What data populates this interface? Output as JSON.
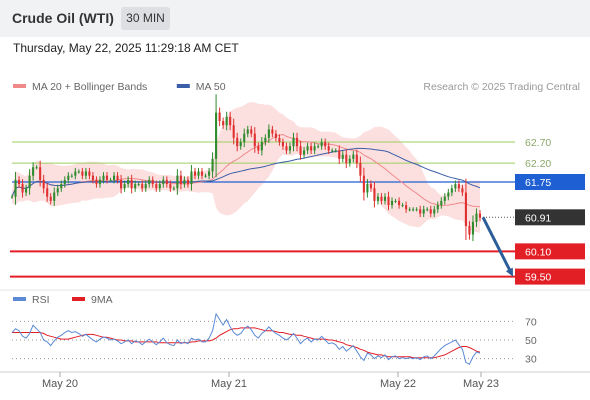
{
  "header": {
    "title": "Crude Oil (WTI)",
    "timeframe": "30 MIN"
  },
  "datetime": "Thursday, May 22, 2025 11:29:18 AM CET",
  "colors": {
    "candle_up": "#2e8b2e",
    "candle_down": "#e03030",
    "bollinger_fill": "#fbd6d6",
    "ma20": "#f08a8a",
    "ma50": "#3a5ea8",
    "rsi": "#5b8ad6",
    "rsi_ma": "#e31f26",
    "resistance": "#9ccf5e",
    "pivot": "#1f5fd4",
    "support": "#e31f26",
    "arrow": "#2c5e9a"
  },
  "chart_data": {
    "type": "candlestick",
    "legend": {
      "position": "top-left",
      "items": [
        {
          "label": "MA 20 + Bollinger Bands",
          "color": "#f08a8a"
        },
        {
          "label": "MA 50",
          "color": "#3a5ea8"
        }
      ]
    },
    "watermark": "Research © 2025 Trading Central",
    "x_ticks": [
      "May 20",
      "May 21",
      "May 22",
      "May 23"
    ],
    "ylim": [
      59.3,
      63.7
    ],
    "closes": [
      61.4,
      61.8,
      61.7,
      61.5,
      61.6,
      61.9,
      62.1,
      62.1,
      61.8,
      61.6,
      61.4,
      61.3,
      61.5,
      61.6,
      61.7,
      61.8,
      61.9,
      61.9,
      62.0,
      62.0,
      61.9,
      62.0,
      61.9,
      61.8,
      61.7,
      61.8,
      61.9,
      61.8,
      61.8,
      61.9,
      61.8,
      61.6,
      61.7,
      61.8,
      61.6,
      61.7,
      61.7,
      61.6,
      61.7,
      61.8,
      61.7,
      61.6,
      61.7,
      61.8,
      61.7,
      61.6,
      61.6,
      61.9,
      61.7,
      61.8,
      61.7,
      62.0,
      61.9,
      62.0,
      61.9,
      61.9,
      62.0,
      62.3,
      63.4,
      63.2,
      63.1,
      63.3,
      63.1,
      62.8,
      62.6,
      62.7,
      62.9,
      63.0,
      62.9,
      62.6,
      62.5,
      62.7,
      62.8,
      63.0,
      62.9,
      62.8,
      62.7,
      62.6,
      62.5,
      62.6,
      62.8,
      62.6,
      62.4,
      62.5,
      62.6,
      62.5,
      62.6,
      62.6,
      62.7,
      62.6,
      62.5,
      62.5,
      62.5,
      62.3,
      62.4,
      62.2,
      62.3,
      62.4,
      62.2,
      61.9,
      61.5,
      61.7,
      61.6,
      61.3,
      61.4,
      61.3,
      61.4,
      61.2,
      61.3,
      61.3,
      61.2,
      61.2,
      61.1,
      61.1,
      61.1,
      61.1,
      61.0,
      61.1,
      61.1,
      61.0,
      61.1,
      61.2,
      61.3,
      61.4,
      61.5,
      61.6,
      61.7,
      61.6,
      61.5,
      60.7,
      60.5,
      60.8,
      61.0,
      60.9
    ],
    "levels": [
      {
        "value": 62.7,
        "label": "62.70",
        "kind": "resistance"
      },
      {
        "value": 62.2,
        "label": "62.20",
        "kind": "resistance"
      },
      {
        "value": 61.75,
        "label": "61.75",
        "kind": "pivot"
      },
      {
        "value": 60.91,
        "label": "60.91",
        "kind": "last"
      },
      {
        "value": 60.1,
        "label": "60.10",
        "kind": "support"
      },
      {
        "value": 59.5,
        "label": "59.50",
        "kind": "support"
      }
    ],
    "forecast_arrow": {
      "from": 60.91,
      "to": 59.5
    },
    "rsi_panel": {
      "legend": [
        {
          "label": "RSI",
          "color": "#5b8ad6"
        },
        {
          "label": "9MA",
          "color": "#e31f26"
        }
      ],
      "ylim": [
        20,
        80
      ],
      "ticks": [
        "70",
        "50",
        "30"
      ],
      "rsi": [
        58,
        62,
        60,
        54,
        52,
        57,
        66,
        62,
        58,
        50,
        48,
        44,
        49,
        53,
        55,
        58,
        60,
        58,
        59,
        57,
        54,
        56,
        53,
        50,
        48,
        51,
        53,
        52,
        50,
        51,
        49,
        46,
        48,
        50,
        46,
        49,
        48,
        45,
        48,
        51,
        48,
        45,
        48,
        52,
        47,
        45,
        44,
        50,
        46,
        48,
        46,
        52,
        50,
        51,
        48,
        48,
        52,
        60,
        78,
        72,
        66,
        72,
        64,
        58,
        55,
        57,
        62,
        65,
        61,
        55,
        52,
        57,
        60,
        64,
        60,
        57,
        55,
        52,
        50,
        53,
        57,
        52,
        46,
        50,
        52,
        48,
        51,
        50,
        54,
        50,
        46,
        47,
        45,
        40,
        43,
        38,
        41,
        44,
        38,
        32,
        28,
        36,
        34,
        30,
        33,
        31,
        34,
        29,
        32,
        33,
        30,
        31,
        30,
        31,
        30,
        31,
        29,
        32,
        33,
        30,
        33,
        37,
        41,
        44,
        46,
        48,
        50,
        45,
        40,
        26,
        24,
        32,
        37,
        36
      ],
      "ma9": [
        58,
        58,
        58,
        58,
        58,
        58,
        58,
        58,
        58,
        57,
        55,
        54,
        53,
        52,
        51,
        51,
        51,
        52,
        53,
        54,
        55,
        56,
        56,
        56,
        55,
        54,
        53,
        53,
        52,
        51,
        50,
        50,
        49,
        49,
        49,
        48,
        48,
        48,
        48,
        48,
        48,
        48,
        47,
        47,
        47,
        47,
        47,
        47,
        47,
        47,
        47,
        48,
        48,
        49,
        49,
        49,
        49,
        50,
        52,
        55,
        57,
        59,
        61,
        62,
        62,
        63,
        63,
        63,
        63,
        63,
        62,
        61,
        60,
        60,
        60,
        59,
        58,
        58,
        57,
        56,
        56,
        55,
        55,
        54,
        53,
        52,
        51,
        51,
        51,
        51,
        50,
        50,
        49,
        48,
        47,
        45,
        44,
        43,
        42,
        40,
        39,
        37,
        36,
        35,
        34,
        34,
        33,
        32,
        32,
        32,
        32,
        32,
        32,
        32,
        31,
        31,
        31,
        31,
        31,
        31,
        31,
        32,
        33,
        34,
        36,
        38,
        40,
        42,
        43,
        43,
        42,
        40,
        38,
        37
      ]
    }
  }
}
